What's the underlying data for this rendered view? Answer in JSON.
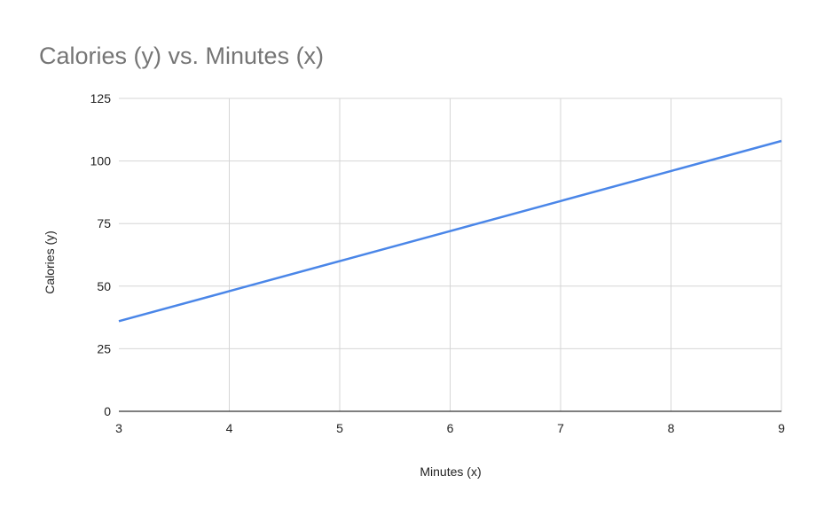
{
  "chart_data": {
    "type": "line",
    "title": "Calories (y) vs. Minutes (x)",
    "xlabel": "Minutes (x)",
    "ylabel": "Calories (y)",
    "xlim": [
      3,
      9
    ],
    "ylim": [
      0,
      125
    ],
    "x_ticks": [
      "3",
      "4",
      "5",
      "6",
      "7",
      "8",
      "9"
    ],
    "y_ticks": [
      "0",
      "25",
      "50",
      "75",
      "100",
      "125"
    ],
    "grid": true,
    "legend": "none",
    "series": [
      {
        "x": [
          3,
          4,
          5,
          6,
          7,
          8,
          9
        ],
        "values": [
          36,
          48,
          60,
          72,
          84,
          96,
          108
        ],
        "color": "#4a86e8"
      }
    ],
    "colors": {
      "gridline": "#d6d6d6",
      "axis": "#333333",
      "title": "#757575"
    }
  }
}
